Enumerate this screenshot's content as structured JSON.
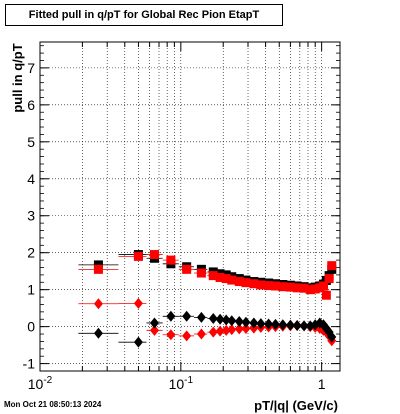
{
  "chart_data": {
    "type": "scatter",
    "title": "Fitted pull in q/pT for Global Rec Pion EtapT",
    "xlabel": "pT/|q| (GeV/c)",
    "ylabel": "pull in q/pT",
    "x_scale": "log",
    "xlim": [
      0.01,
      1.35
    ],
    "ylim": [
      -1.2,
      7.7
    ],
    "x_ticks": [
      {
        "value": 0.01,
        "label": "10^-2"
      },
      {
        "value": 0.1,
        "label": "10^-1"
      },
      {
        "value": 1,
        "label": "1"
      }
    ],
    "y_ticks": [
      -1,
      0,
      1,
      2,
      3,
      4,
      5,
      6,
      7
    ],
    "grid": true,
    "series": [
      {
        "color": "#000000",
        "marker": "square",
        "points": [
          [
            0.026,
            1.67
          ],
          [
            0.05,
            1.95
          ],
          [
            0.065,
            1.85
          ],
          [
            0.085,
            1.7
          ],
          [
            0.11,
            1.62
          ],
          [
            0.14,
            1.55
          ],
          [
            0.17,
            1.48
          ],
          [
            0.19,
            1.43
          ],
          [
            0.21,
            1.4
          ],
          [
            0.23,
            1.35
          ],
          [
            0.26,
            1.3
          ],
          [
            0.29,
            1.26
          ],
          [
            0.33,
            1.22
          ],
          [
            0.37,
            1.2
          ],
          [
            0.42,
            1.18
          ],
          [
            0.47,
            1.16
          ],
          [
            0.53,
            1.14
          ],
          [
            0.6,
            1.12
          ],
          [
            0.67,
            1.1
          ],
          [
            0.75,
            1.08
          ],
          [
            0.83,
            1.05
          ],
          [
            0.9,
            1.07
          ],
          [
            0.97,
            1.1
          ],
          [
            1.03,
            1.15
          ],
          [
            1.08,
            1.25
          ],
          [
            1.13,
            1.38
          ],
          [
            1.18,
            1.55
          ]
        ]
      },
      {
        "color": "#ff0000",
        "marker": "square",
        "points": [
          [
            0.026,
            1.55
          ],
          [
            0.05,
            1.9
          ],
          [
            0.065,
            1.95
          ],
          [
            0.085,
            1.8
          ],
          [
            0.11,
            1.55
          ],
          [
            0.14,
            1.45
          ],
          [
            0.17,
            1.38
          ],
          [
            0.19,
            1.33
          ],
          [
            0.21,
            1.3
          ],
          [
            0.23,
            1.26
          ],
          [
            0.26,
            1.22
          ],
          [
            0.29,
            1.19
          ],
          [
            0.33,
            1.16
          ],
          [
            0.37,
            1.13
          ],
          [
            0.42,
            1.11
          ],
          [
            0.47,
            1.1
          ],
          [
            0.53,
            1.08
          ],
          [
            0.6,
            1.07
          ],
          [
            0.67,
            1.05
          ],
          [
            0.75,
            1.04
          ],
          [
            0.83,
            1.0
          ],
          [
            0.9,
            1.02
          ],
          [
            0.97,
            1.05
          ],
          [
            1.03,
            1.1
          ],
          [
            1.08,
            0.85
          ],
          [
            1.13,
            1.3
          ],
          [
            1.18,
            1.65
          ]
        ]
      },
      {
        "color": "#ff0000",
        "marker": "diamond",
        "points": [
          [
            0.026,
            0.62
          ],
          [
            0.05,
            0.63
          ],
          [
            0.065,
            -0.1
          ],
          [
            0.085,
            -0.22
          ],
          [
            0.11,
            -0.25
          ],
          [
            0.14,
            -0.2
          ],
          [
            0.17,
            -0.15
          ],
          [
            0.19,
            -0.12
          ],
          [
            0.21,
            -0.1
          ],
          [
            0.23,
            -0.08
          ],
          [
            0.26,
            -0.06
          ],
          [
            0.29,
            -0.05
          ],
          [
            0.33,
            -0.04
          ],
          [
            0.37,
            -0.02
          ],
          [
            0.42,
            -0.01
          ],
          [
            0.47,
            0.0
          ],
          [
            0.53,
            0.01
          ],
          [
            0.6,
            0.02
          ],
          [
            0.67,
            0.03
          ],
          [
            0.75,
            0.02
          ],
          [
            0.83,
            0.0
          ],
          [
            0.9,
            -0.02
          ],
          [
            0.97,
            -0.05
          ],
          [
            1.03,
            -0.1
          ],
          [
            1.08,
            -0.15
          ],
          [
            1.13,
            -0.25
          ],
          [
            1.18,
            -0.38
          ]
        ]
      },
      {
        "color": "#000000",
        "marker": "diamond",
        "points": [
          [
            0.026,
            -0.18
          ],
          [
            0.05,
            -0.42
          ],
          [
            0.065,
            0.1
          ],
          [
            0.085,
            0.28
          ],
          [
            0.11,
            0.28
          ],
          [
            0.14,
            0.25
          ],
          [
            0.17,
            0.22
          ],
          [
            0.19,
            0.2
          ],
          [
            0.21,
            0.18
          ],
          [
            0.23,
            0.16
          ],
          [
            0.26,
            0.14
          ],
          [
            0.29,
            0.12
          ],
          [
            0.33,
            0.1
          ],
          [
            0.37,
            0.08
          ],
          [
            0.42,
            0.07
          ],
          [
            0.47,
            0.06
          ],
          [
            0.53,
            0.05
          ],
          [
            0.6,
            0.04
          ],
          [
            0.67,
            0.03
          ],
          [
            0.75,
            0.02
          ],
          [
            0.83,
            0.02
          ],
          [
            0.9,
            0.05
          ],
          [
            0.97,
            0.1
          ],
          [
            1.03,
            0.05
          ],
          [
            1.08,
            -0.05
          ],
          [
            1.13,
            -0.15
          ],
          [
            1.18,
            -0.28
          ]
        ]
      }
    ]
  },
  "footer": {
    "date": "Mon Oct 21 08:50:13 2024"
  }
}
